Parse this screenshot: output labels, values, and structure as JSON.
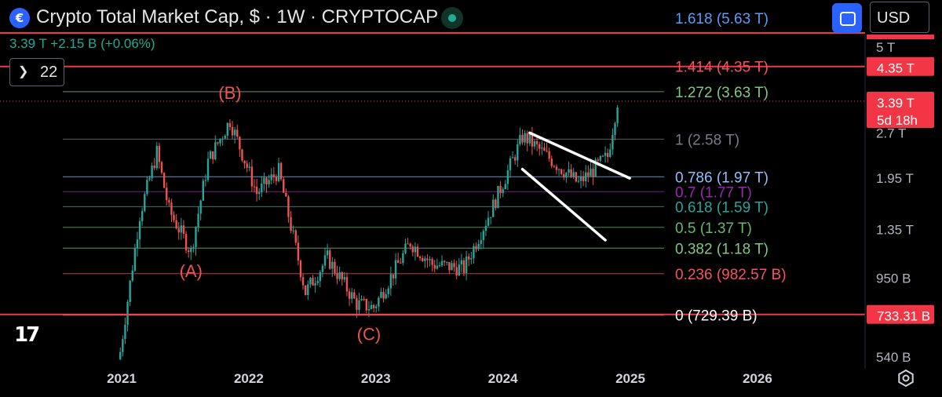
{
  "header": {
    "logo_glyph": "€",
    "title": "Crypto Total Market Cap, $ · 1W · CRYPTOCAP",
    "price_line": "3.39 T  +2.15 B (+0.06%)",
    "collapse_count": "22",
    "currency": "USD"
  },
  "colors": {
    "background": "#000000",
    "up_candle": "#26a69a",
    "down_candle": "#ef5350",
    "red_line": "#f23645",
    "status_green": "#22ab94",
    "accent": "#2962ff"
  },
  "icons": {
    "logo": "crypto-logo-icon",
    "status": "market-status-dot-icon",
    "collapse": "chevron-down-icon",
    "compare": "compare-icon",
    "settings": "gear-icon",
    "brand": "tradingview-logo-icon"
  },
  "chart_data": {
    "type": "candlestick",
    "title": "Crypto Total Market Cap, $ · 1W · CRYPTOCAP",
    "scale": "log",
    "ylim": [
      520000000000,
      6000000000000
    ],
    "x_ticks": [
      "2021",
      "2022",
      "2023",
      "2024",
      "2025",
      "2026"
    ],
    "y_ticks": [
      "5 T",
      "2.7 T",
      "1.95 T",
      "1.35 T",
      "950 B",
      "540 B"
    ],
    "y_tick_values": [
      5000000000000,
      2700000000000,
      1950000000000,
      1350000000000,
      950000000000,
      540000000000
    ],
    "price_path": {
      "dates": [
        "2020-12-28",
        "2021-02-22",
        "2021-04-12",
        "2021-05-17",
        "2021-07-19",
        "2021-09-06",
        "2021-11-08",
        "2022-01-24",
        "2022-03-28",
        "2022-06-13",
        "2022-08-15",
        "2022-11-07",
        "2022-12-26",
        "2023-04-10",
        "2023-06-12",
        "2023-09-11",
        "2023-12-04",
        "2024-02-26",
        "2024-03-11",
        "2024-08-05",
        "2024-10-28",
        "2024-11-25"
      ],
      "values": [
        560000000000,
        1500000000000,
        2350000000000,
        1550000000000,
        1150000000000,
        2200000000000,
        2950000000000,
        1750000000000,
        2050000000000,
        860000000000,
        1100000000000,
        790000000000,
        770000000000,
        1230000000000,
        1050000000000,
        1020000000000,
        1600000000000,
        2620000000000,
        2580000000000,
        1880000000000,
        2280000000000,
        3390000000000
      ]
    },
    "fib_levels": [
      {
        "ratio": "1.618",
        "label": "1.618 (5.63 T)",
        "value": 5630000000000,
        "color": "#5b9cf6"
      },
      {
        "ratio": "1.414",
        "label": "1.414 (4.35 T)",
        "value": 4350000000000,
        "color": "#f7525f"
      },
      {
        "ratio": "1.272",
        "label": "1.272 (3.63 T)",
        "value": 3630000000000,
        "color": "#81c784"
      },
      {
        "ratio": "1",
        "label": "1 (2.58 T)",
        "value": 2580000000000,
        "color": "#787b86"
      },
      {
        "ratio": "0.786",
        "label": "0.786 (1.97 T)",
        "value": 1970000000000,
        "color": "#90bff9"
      },
      {
        "ratio": "0.7",
        "label": "0.7 (1.77 T)",
        "value": 1770000000000,
        "color": "#9c27b0"
      },
      {
        "ratio": "0.618",
        "label": "0.618 (1.59 T)",
        "value": 1590000000000,
        "color": "#26a69a"
      },
      {
        "ratio": "0.5",
        "label": "0.5 (1.37 T)",
        "value": 1370000000000,
        "color": "#66bb6a"
      },
      {
        "ratio": "0.382",
        "label": "0.382 (1.18 T)",
        "value": 1180000000000,
        "color": "#81c784"
      },
      {
        "ratio": "0.236",
        "label": "0.236 (982.57 B)",
        "value": 982570000000,
        "color": "#f7525f"
      },
      {
        "ratio": "0",
        "label": "0 (729.39 B)",
        "value": 729390000000,
        "color": "#ffffff"
      }
    ],
    "horizontal_lines": [
      {
        "value": 4350000000000,
        "label": "4.35 T",
        "color": "#f23645"
      },
      {
        "value": 733310000000,
        "label": "733.31 B",
        "color": "#f23645"
      }
    ],
    "current_price": {
      "label": "3.39 T",
      "countdown": "5d 18h",
      "value": 3390000000000
    },
    "wave_labels": [
      {
        "text": "(A)",
        "date": "2021-07-19",
        "value": 960000000000
      },
      {
        "text": "(B)",
        "date": "2021-11-08",
        "value": 3450000000000
      },
      {
        "text": "(C)",
        "date": "2022-12-12",
        "value": 610000000000
      }
    ],
    "trendlines": [
      {
        "from": {
          "date": "2024-03-18",
          "value": 2700000000000
        },
        "to": {
          "date": "2024-12-30",
          "value": 1950000000000
        },
        "color": "#ffffff"
      },
      {
        "from": {
          "date": "2024-02-26",
          "value": 2080000000000
        },
        "to": {
          "date": "2024-10-21",
          "value": 1250000000000
        },
        "color": "#ffffff"
      }
    ]
  }
}
